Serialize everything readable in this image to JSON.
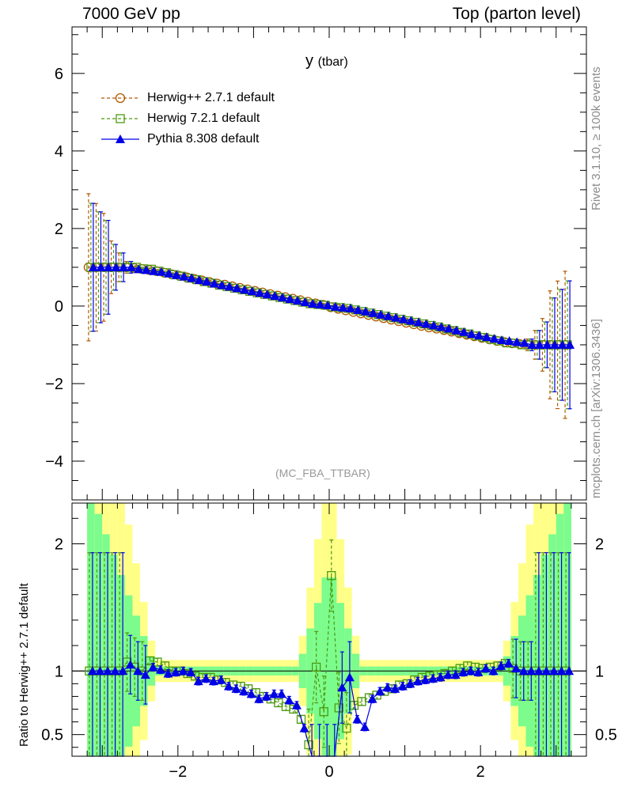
{
  "header": {
    "left": "7000 GeV pp",
    "right": "Top (parton level)"
  },
  "side_labels": {
    "rivet": "Rivet 3.1.10, ≥ 100k events",
    "mcplots": "mcplots.cern.ch [arXiv:1306.3436]"
  },
  "analysis": "(MC_FBA_TTBAR)",
  "colors": {
    "herwigpp": "#b35900",
    "herwig7": "#4c9a0f",
    "pythia": "#0000e6",
    "band_inner": "#7cfc8c",
    "band_outer": "#ffff88"
  },
  "chart_data": [
    {
      "type": "line",
      "panel": "main",
      "title": "y",
      "title_suffix": "(tbar)",
      "xlim": [
        -3.4,
        3.4
      ],
      "ylim": [
        -5,
        7.2
      ],
      "yticks": [
        -4,
        -2,
        0,
        2,
        4,
        6
      ],
      "xticks": [
        -2,
        0,
        2
      ],
      "x": [
        -3.15,
        -3.05,
        -2.95,
        -2.85,
        -2.75,
        -2.65,
        -2.55,
        -2.45,
        -2.35,
        -2.25,
        -2.15,
        -2.05,
        -1.95,
        -1.85,
        -1.75,
        -1.65,
        -1.55,
        -1.45,
        -1.35,
        -1.25,
        -1.15,
        -1.05,
        -0.95,
        -0.85,
        -0.75,
        -0.65,
        -0.55,
        -0.45,
        -0.35,
        -0.25,
        -0.15,
        -0.05,
        0.05,
        0.15,
        0.25,
        0.35,
        0.45,
        0.55,
        0.65,
        0.75,
        0.85,
        0.95,
        1.05,
        1.15,
        1.25,
        1.35,
        1.45,
        1.55,
        1.65,
        1.75,
        1.85,
        1.95,
        2.05,
        2.15,
        2.25,
        2.35,
        2.45,
        2.55,
        2.65,
        2.75,
        2.85,
        2.95,
        3.05,
        3.15
      ],
      "legend_position": "top-left",
      "series": [
        {
          "name": "Herwig++ 2.7.1 default",
          "style": "dashed-open-circle",
          "y": [
            1.0,
            1.0,
            1.0,
            1.0,
            1.0,
            1.0,
            0.98,
            0.96,
            0.93,
            0.9,
            0.86,
            0.82,
            0.78,
            0.74,
            0.7,
            0.66,
            0.62,
            0.58,
            0.55,
            0.51,
            0.47,
            0.43,
            0.39,
            0.35,
            0.31,
            0.27,
            0.23,
            0.19,
            0.15,
            0.11,
            0.07,
            0.03,
            -0.03,
            -0.07,
            -0.11,
            -0.15,
            -0.19,
            -0.23,
            -0.27,
            -0.31,
            -0.35,
            -0.39,
            -0.43,
            -0.47,
            -0.51,
            -0.55,
            -0.58,
            -0.62,
            -0.66,
            -0.7,
            -0.74,
            -0.78,
            -0.82,
            -0.86,
            -0.9,
            -0.93,
            -0.96,
            -0.98,
            -1.0,
            -1.0,
            -1.0,
            -1.0,
            -1.0,
            -1.0
          ]
        },
        {
          "name": "Herwig 7.2.1 default",
          "style": "dashed-open-square",
          "y": [
            1.0,
            1.0,
            1.0,
            1.0,
            1.0,
            1.0,
            1.0,
            0.96,
            0.95,
            0.9,
            0.86,
            0.81,
            0.77,
            0.72,
            0.68,
            0.63,
            0.59,
            0.54,
            0.5,
            0.46,
            0.42,
            0.38,
            0.34,
            0.3,
            0.26,
            0.22,
            0.18,
            0.14,
            0.1,
            0.06,
            0.04,
            0.02,
            -0.02,
            -0.04,
            -0.06,
            -0.1,
            -0.14,
            -0.18,
            -0.22,
            -0.26,
            -0.3,
            -0.34,
            -0.38,
            -0.42,
            -0.46,
            -0.5,
            -0.54,
            -0.59,
            -0.63,
            -0.68,
            -0.72,
            -0.77,
            -0.81,
            -0.86,
            -0.9,
            -0.95,
            -0.96,
            -1.0,
            -1.0,
            -1.0,
            -1.0,
            -1.0,
            -1.0,
            -1.0
          ]
        },
        {
          "name": "Pythia 8.308 default",
          "style": "solid-filled-triangle",
          "y": [
            1.0,
            1.0,
            1.0,
            1.0,
            1.0,
            1.0,
            0.95,
            0.93,
            0.9,
            0.88,
            0.84,
            0.8,
            0.76,
            0.72,
            0.67,
            0.63,
            0.58,
            0.54,
            0.5,
            0.46,
            0.42,
            0.38,
            0.34,
            0.3,
            0.26,
            0.22,
            0.18,
            0.14,
            0.1,
            0.06,
            0.04,
            0.02,
            -0.02,
            -0.04,
            -0.06,
            -0.1,
            -0.14,
            -0.18,
            -0.22,
            -0.26,
            -0.3,
            -0.34,
            -0.38,
            -0.42,
            -0.46,
            -0.5,
            -0.54,
            -0.58,
            -0.63,
            -0.67,
            -0.72,
            -0.76,
            -0.8,
            -0.84,
            -0.88,
            -0.9,
            -0.93,
            -0.95,
            -1.0,
            -1.0,
            -1.0,
            -1.0,
            -1.0,
            -1.0
          ]
        }
      ]
    },
    {
      "type": "line",
      "panel": "ratio",
      "ylabel": "Ratio to Herwig++ 2.7.1 default",
      "xlim": [
        -3.4,
        3.4
      ],
      "ylim": [
        0.33,
        2.32
      ],
      "yticks": [
        0.5,
        1,
        2
      ],
      "xticks": [
        -2,
        0,
        2
      ],
      "reference": 1,
      "series": [
        {
          "name": "Herwig 7.2.1 default",
          "ratio": [
            1.0,
            1.0,
            1.0,
            1.0,
            1.0,
            1.07,
            1.03,
            1.0,
            1.08,
            1.07,
            1.04,
            1.0,
            1.0,
            0.98,
            0.96,
            0.95,
            0.95,
            0.93,
            0.91,
            0.89,
            0.88,
            0.86,
            0.83,
            0.8,
            0.78,
            0.75,
            0.72,
            0.7,
            0.62,
            0.42,
            1.03,
            0.68,
            1.75,
            0.71,
            0.55,
            0.73,
            0.76,
            0.79,
            0.81,
            0.84,
            0.86,
            0.89,
            0.9,
            0.93,
            0.95,
            0.96,
            0.97,
            0.98,
            1.0,
            1.02,
            1.04,
            1.03,
            1.02,
            1.03,
            1.04,
            1.06,
            1.02,
            1.0,
            1.0,
            1.0,
            1.0,
            1.0,
            1.0,
            1.0
          ]
        },
        {
          "name": "Pythia 8.308 default",
          "ratio": [
            1.0,
            1.0,
            1.0,
            1.0,
            1.0,
            1.05,
            1.0,
            0.97,
            1.03,
            1.01,
            0.98,
            0.99,
            1.0,
            0.99,
            0.92,
            0.94,
            0.92,
            0.93,
            0.88,
            0.86,
            0.84,
            0.82,
            0.78,
            0.8,
            0.82,
            0.82,
            0.77,
            0.73,
            0.55,
            0.3,
            0.3,
            0.3,
            0.3,
            0.87,
            0.95,
            0.62,
            0.56,
            0.78,
            0.84,
            0.87,
            0.86,
            0.88,
            0.9,
            0.92,
            0.93,
            0.94,
            0.95,
            0.97,
            0.97,
            0.99,
            1.0,
            0.99,
            1.02,
            1.0,
            1.04,
            1.06,
            1.02,
            1.0,
            1.0,
            1.0,
            1.0,
            1.0,
            1.0,
            1.0
          ]
        }
      ]
    }
  ]
}
